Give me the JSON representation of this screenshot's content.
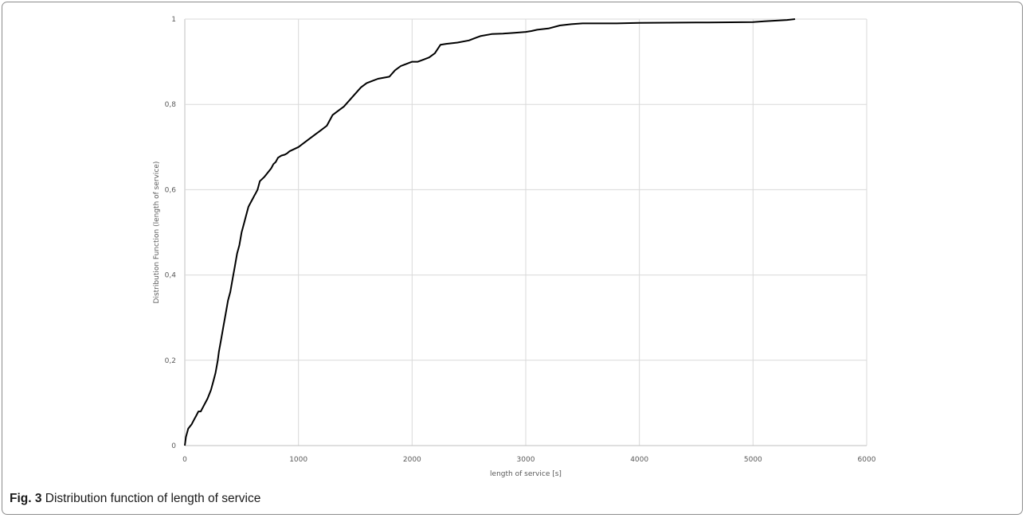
{
  "caption": {
    "label": "Fig. 3",
    "text": "Distribution function of length of service"
  },
  "chart_data": {
    "type": "line",
    "xlabel": "length of service [s]",
    "ylabel": "Distribution Function (length of service)",
    "xlim": [
      0,
      6000
    ],
    "ylim": [
      0,
      1
    ],
    "grid": true,
    "line_color": "#000000",
    "x_ticks": [
      0,
      1000,
      2000,
      3000,
      4000,
      5000,
      6000
    ],
    "x_tick_labels": [
      "0",
      "1000",
      "2000",
      "3000",
      "4000",
      "5000",
      "6000"
    ],
    "y_ticks": [
      0,
      0.2,
      0.4,
      0.6,
      0.8,
      1
    ],
    "y_tick_labels": [
      "0",
      "0,2",
      "0,4",
      "0,6",
      "0,8",
      "1"
    ],
    "series": [
      {
        "x": [
          0,
          10,
          30,
          60,
          80,
          100,
          120,
          140,
          160,
          200,
          230,
          250,
          270,
          290,
          300,
          320,
          340,
          360,
          380,
          400,
          420,
          440,
          460,
          480,
          500,
          520,
          540,
          560,
          580,
          600,
          610,
          620,
          640,
          660,
          700,
          730,
          760,
          780,
          800,
          820,
          850,
          880,
          900,
          920,
          1000,
          1050,
          1100,
          1150,
          1200,
          1250,
          1300,
          1350,
          1400,
          1450,
          1500,
          1550,
          1600,
          1650,
          1700,
          1800,
          1850,
          1900,
          1950,
          2000,
          2050,
          2100,
          2150,
          2200,
          2250,
          2300,
          2400,
          2500,
          2550,
          2600,
          2700,
          2800,
          2900,
          3000,
          3050,
          3100,
          3200,
          3300,
          3400,
          3500,
          3800,
          4000,
          4500,
          5000,
          5100,
          5300,
          5370
        ],
        "y": [
          0.0,
          0.02,
          0.04,
          0.05,
          0.06,
          0.07,
          0.08,
          0.08,
          0.09,
          0.11,
          0.13,
          0.15,
          0.17,
          0.2,
          0.22,
          0.25,
          0.28,
          0.31,
          0.34,
          0.36,
          0.39,
          0.42,
          0.45,
          0.47,
          0.5,
          0.52,
          0.54,
          0.56,
          0.57,
          0.58,
          0.585,
          0.59,
          0.6,
          0.62,
          0.63,
          0.64,
          0.65,
          0.66,
          0.665,
          0.675,
          0.68,
          0.682,
          0.685,
          0.69,
          0.7,
          0.71,
          0.72,
          0.73,
          0.74,
          0.75,
          0.775,
          0.785,
          0.795,
          0.81,
          0.825,
          0.84,
          0.85,
          0.855,
          0.86,
          0.865,
          0.88,
          0.89,
          0.895,
          0.9,
          0.9,
          0.905,
          0.91,
          0.92,
          0.94,
          0.942,
          0.945,
          0.95,
          0.955,
          0.96,
          0.965,
          0.966,
          0.968,
          0.97,
          0.972,
          0.975,
          0.978,
          0.985,
          0.988,
          0.99,
          0.99,
          0.991,
          0.992,
          0.993,
          0.995,
          0.998,
          1.0
        ]
      }
    ]
  }
}
